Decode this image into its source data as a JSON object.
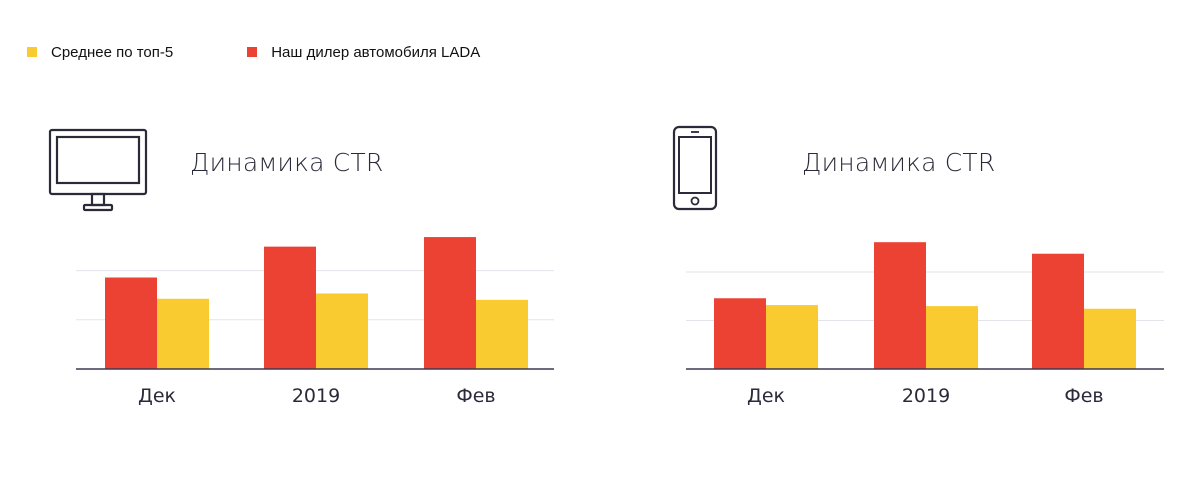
{
  "legend": {
    "items": [
      {
        "label": "Среднее по топ-5",
        "color": "#F9CB31"
      },
      {
        "label": "Наш дилер автомобиля LADA",
        "color": "#EC4234"
      }
    ]
  },
  "colors": {
    "dealer": "#EC4234",
    "top5": "#F9CB31",
    "grid": "#e3e3ea",
    "axis": "#3a3a52"
  },
  "chart_data": [
    {
      "type": "bar",
      "device_icon": "desktop-monitor-icon",
      "title": "Динамика CTR",
      "categories": [
        "Дек",
        "2019",
        "Фев"
      ],
      "series": [
        {
          "name": "Наш дилер автомобиля LADA",
          "values": [
            1.72,
            2.3,
            2.48
          ]
        },
        {
          "name": "Среднее по топ-5",
          "values": [
            1.32,
            1.42,
            1.3
          ]
        }
      ],
      "ylim": [
        0,
        2.5
      ],
      "grid": true,
      "legend_position": "top-left"
    },
    {
      "type": "bar",
      "device_icon": "smartphone-icon",
      "title": "Динамика CTR",
      "categories": [
        "Дек",
        "2019",
        "Фев"
      ],
      "series": [
        {
          "name": "Наш дилер автомобиля LADA",
          "values": [
            1.35,
            2.42,
            2.2
          ]
        },
        {
          "name": "Среднее по топ-5",
          "values": [
            1.22,
            1.2,
            1.15
          ]
        }
      ],
      "ylim": [
        0,
        2.5
      ],
      "grid": true,
      "legend_position": "top-left"
    }
  ]
}
